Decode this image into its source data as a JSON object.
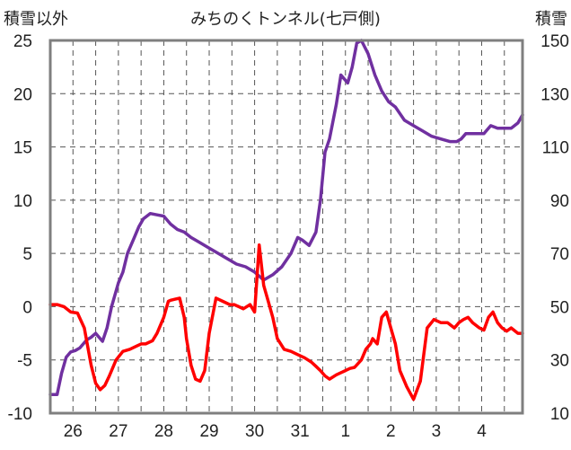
{
  "chart_data": {
    "type": "line",
    "title": "みちのくトンネル(七戸側)",
    "y_left_label": "積雪以外",
    "y_right_label": "積雪",
    "y_left_ticks": [
      "25",
      "20",
      "15",
      "10",
      "5",
      "0",
      "-5",
      "-10"
    ],
    "y_right_ticks": [
      "150",
      "130",
      "110",
      "90",
      "70",
      "50",
      "30",
      "10"
    ],
    "y_left_range": [
      -10,
      25
    ],
    "y_right_range": [
      10,
      150
    ],
    "categories": [
      "26",
      "27",
      "28",
      "29",
      "30",
      "31",
      "1",
      "2",
      "3",
      "4"
    ],
    "x_range_days": [
      0,
      10.4
    ],
    "grid": true,
    "colors": {
      "temperature": "#ff0000",
      "snow_depth": "#7030a0",
      "grid": "#555555",
      "frame": "#7f7f7f"
    },
    "series": [
      {
        "axis": "left",
        "color": "#ff0000",
        "x": [
          0.0,
          0.15,
          0.3,
          0.45,
          0.6,
          0.75,
          0.9,
          1.0,
          1.1,
          1.2,
          1.3,
          1.45,
          1.6,
          1.75,
          1.9,
          2.0,
          2.1,
          2.25,
          2.35,
          2.5,
          2.6,
          2.65,
          2.75,
          2.85,
          2.95,
          3.0,
          3.1,
          3.2,
          3.3,
          3.4,
          3.5,
          3.65,
          3.8,
          3.95,
          4.05,
          4.15,
          4.25,
          4.4,
          4.5,
          4.6,
          4.7,
          4.8,
          4.9,
          5.0,
          5.15,
          5.3,
          5.45,
          5.6,
          5.75,
          5.85,
          5.95,
          6.05,
          6.15,
          6.3,
          6.4,
          6.5,
          6.6,
          6.7,
          6.85,
          6.95,
          7.05,
          7.1,
          7.2,
          7.3,
          7.4,
          7.5,
          7.6,
          7.7,
          7.85,
          8.0,
          8.15,
          8.3,
          8.45,
          8.6,
          8.75,
          8.9,
          9.0,
          9.1,
          9.2,
          9.3,
          9.45,
          9.55,
          9.65,
          9.75,
          9.85,
          9.95,
          10.05,
          10.15,
          10.3,
          10.4
        ],
        "values": [
          0.2,
          0.2,
          0.0,
          -0.5,
          -0.6,
          -2.0,
          -5.5,
          -7.2,
          -7.8,
          -7.4,
          -6.5,
          -5.0,
          -4.2,
          -4.0,
          -3.7,
          -3.5,
          -3.5,
          -3.2,
          -2.5,
          -1.0,
          0.5,
          0.6,
          0.7,
          0.8,
          -1.0,
          -3.0,
          -5.5,
          -6.8,
          -7.0,
          -6.0,
          -2.5,
          0.8,
          0.5,
          0.2,
          0.2,
          0.0,
          -0.2,
          0.2,
          -0.5,
          5.8,
          2.0,
          0.5,
          -1.0,
          -3.0,
          -4.0,
          -4.2,
          -4.5,
          -4.8,
          -5.2,
          -5.6,
          -6.0,
          -6.5,
          -6.8,
          -6.4,
          -6.2,
          -6.0,
          -5.8,
          -5.7,
          -5.0,
          -4.0,
          -3.5,
          -3.0,
          -3.5,
          -1.0,
          -0.5,
          -2.0,
          -3.5,
          -6.0,
          -7.5,
          -8.7,
          -7.0,
          -2.0,
          -1.2,
          -1.5,
          -1.5,
          -2.0,
          -1.5,
          -1.2,
          -1.0,
          -1.5,
          -2.0,
          -2.2,
          -1.0,
          -0.5,
          -1.5,
          -2.0,
          -2.3,
          -2.0,
          -2.5,
          -2.5
        ]
      },
      {
        "axis": "right",
        "color": "#7030a0",
        "x": [
          0.0,
          0.15,
          0.25,
          0.35,
          0.45,
          0.55,
          0.65,
          0.8,
          0.9,
          1.0,
          1.1,
          1.15,
          1.25,
          1.35,
          1.5,
          1.6,
          1.7,
          1.85,
          1.95,
          2.05,
          2.2,
          2.35,
          2.5,
          2.65,
          2.8,
          2.95,
          3.1,
          3.3,
          3.5,
          3.7,
          3.9,
          4.1,
          4.3,
          4.5,
          4.7,
          4.9,
          5.1,
          5.3,
          5.45,
          5.55,
          5.7,
          5.85,
          5.95,
          6.05,
          6.15,
          6.3,
          6.4,
          6.55,
          6.65,
          6.75,
          6.85,
          7.0,
          7.15,
          7.3,
          7.45,
          7.6,
          7.8,
          8.0,
          8.2,
          8.4,
          8.6,
          8.8,
          8.95,
          9.05,
          9.15,
          9.35,
          9.55,
          9.7,
          9.85,
          10.0,
          10.15,
          10.3,
          10.4
        ],
        "values": [
          17,
          17,
          25,
          31,
          33,
          33.5,
          34.5,
          37.5,
          38.5,
          40,
          38,
          37,
          42,
          50,
          59,
          63,
          70,
          76,
          80,
          83,
          85,
          84.5,
          84,
          81,
          79,
          78,
          76,
          74,
          72,
          70,
          68,
          66,
          65,
          63,
          60,
          62,
          65,
          70,
          76,
          75,
          73,
          78,
          90,
          108,
          113,
          126,
          137,
          134,
          140,
          149,
          150,
          145,
          137,
          131,
          127,
          125,
          120,
          118,
          116,
          114,
          113,
          112,
          112,
          113,
          115,
          115,
          115,
          118,
          117,
          117,
          117,
          119,
          122
        ]
      }
    ]
  }
}
